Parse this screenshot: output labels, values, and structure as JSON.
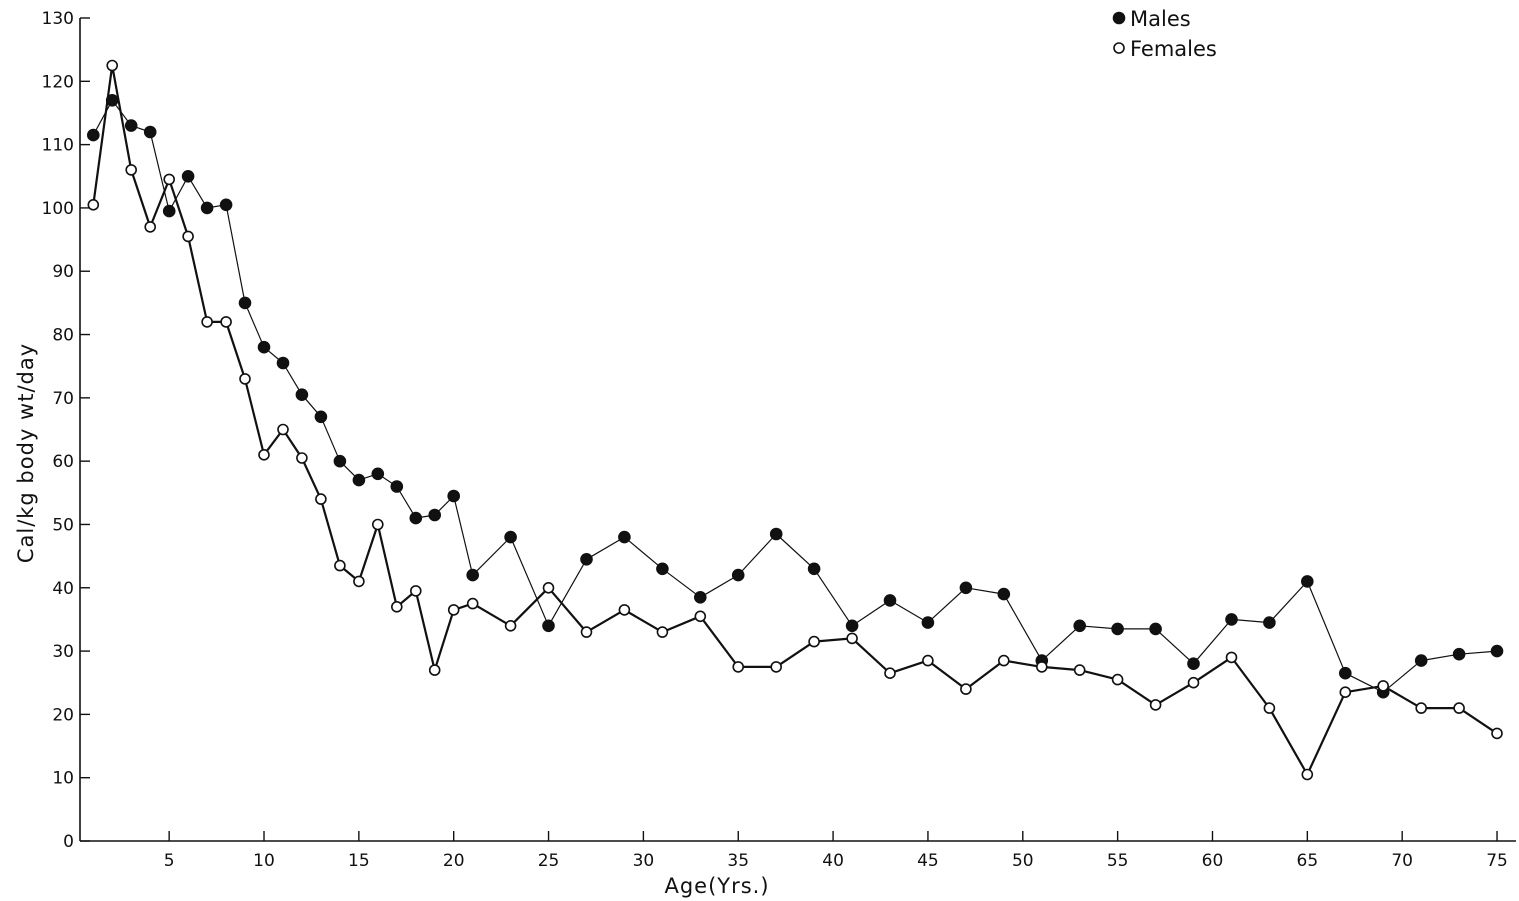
{
  "chart_data": {
    "type": "line",
    "xlabel": "Age(Yrs.)",
    "ylabel": "Cal/kg body wt/day",
    "xlim": [
      0,
      76
    ],
    "ylim": [
      0,
      130
    ],
    "xticks": [
      5,
      10,
      15,
      20,
      25,
      30,
      35,
      40,
      45,
      50,
      55,
      60,
      65,
      70,
      75
    ],
    "yticks": [
      0,
      10,
      20,
      30,
      40,
      50,
      60,
      70,
      80,
      90,
      100,
      110,
      120,
      130
    ],
    "legend_position": "top-right",
    "grid": false,
    "series": [
      {
        "name": "Males",
        "marker": "filled-circle",
        "points": [
          [
            1,
            111.5
          ],
          [
            2,
            117
          ],
          [
            3,
            113
          ],
          [
            4,
            112
          ],
          [
            5,
            99.5
          ],
          [
            6,
            105
          ],
          [
            7,
            100
          ],
          [
            8,
            100.5
          ],
          [
            9,
            85
          ],
          [
            10,
            78
          ],
          [
            11,
            75.5
          ],
          [
            12,
            70.5
          ],
          [
            13,
            67
          ],
          [
            14,
            60
          ],
          [
            15,
            57
          ],
          [
            16,
            58
          ],
          [
            17,
            56
          ],
          [
            18,
            51
          ],
          [
            19,
            51.5
          ],
          [
            20,
            54.5
          ],
          [
            21,
            42
          ],
          [
            23,
            48
          ],
          [
            25,
            34
          ],
          [
            27,
            44.5
          ],
          [
            29,
            48
          ],
          [
            31,
            43
          ],
          [
            33,
            38.5
          ],
          [
            35,
            42
          ],
          [
            37,
            48.5
          ],
          [
            39,
            43
          ],
          [
            41,
            34
          ],
          [
            43,
            38
          ],
          [
            45,
            34.5
          ],
          [
            47,
            40
          ],
          [
            49,
            39
          ],
          [
            51,
            28.5
          ],
          [
            53,
            34
          ],
          [
            55,
            33.5
          ],
          [
            57,
            33.5
          ],
          [
            59,
            28
          ],
          [
            61,
            35
          ],
          [
            63,
            34.5
          ],
          [
            65,
            41
          ],
          [
            67,
            26.5
          ],
          [
            69,
            23.5
          ],
          [
            71,
            28.5
          ],
          [
            73,
            29.5
          ],
          [
            75,
            30
          ]
        ]
      },
      {
        "name": "Females",
        "marker": "open-circle",
        "points": [
          [
            1,
            100.5
          ],
          [
            2,
            122.5
          ],
          [
            3,
            106
          ],
          [
            4,
            97
          ],
          [
            5,
            104.5
          ],
          [
            6,
            95.5
          ],
          [
            7,
            82
          ],
          [
            8,
            82
          ],
          [
            9,
            73
          ],
          [
            10,
            61
          ],
          [
            11,
            65
          ],
          [
            12,
            60.5
          ],
          [
            13,
            54
          ],
          [
            14,
            43.5
          ],
          [
            15,
            41
          ],
          [
            16,
            50
          ],
          [
            17,
            37
          ],
          [
            18,
            39.5
          ],
          [
            19,
            27
          ],
          [
            20,
            36.5
          ],
          [
            21,
            37.5
          ],
          [
            23,
            34
          ],
          [
            25,
            40
          ],
          [
            27,
            33
          ],
          [
            29,
            36.5
          ],
          [
            31,
            33
          ],
          [
            33,
            35.5
          ],
          [
            35,
            27.5
          ],
          [
            37,
            27.5
          ],
          [
            39,
            31.5
          ],
          [
            41,
            32
          ],
          [
            43,
            26.5
          ],
          [
            45,
            28.5
          ],
          [
            47,
            24
          ],
          [
            49,
            28.5
          ],
          [
            51,
            27.5
          ],
          [
            53,
            27
          ],
          [
            55,
            25.5
          ],
          [
            57,
            21.5
          ],
          [
            59,
            25
          ],
          [
            61,
            29
          ],
          [
            63,
            21
          ],
          [
            65,
            10.5
          ],
          [
            67,
            23.5
          ],
          [
            69,
            24.5
          ],
          [
            71,
            21
          ],
          [
            73,
            21
          ],
          [
            75,
            17
          ]
        ]
      }
    ]
  }
}
